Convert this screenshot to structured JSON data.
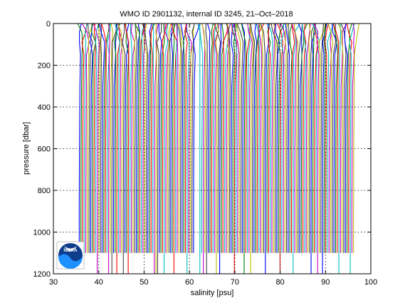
{
  "chart_data": {
    "type": "line",
    "title": "WMO ID 2901132, internal ID 3245, 21–Oct–2018",
    "xlabel": "salinity [psu]",
    "ylabel": "pressure [dbar]",
    "xlim": [
      30,
      100
    ],
    "ylim": [
      0,
      1200
    ],
    "y_reversed": true,
    "x_ticks": [
      "30",
      "40",
      "50",
      "60",
      "70",
      "80",
      "90",
      "100"
    ],
    "y_ticks": [
      "0",
      "200",
      "400",
      "600",
      "800",
      "1000",
      "1200"
    ],
    "grid": true,
    "series_colors": [
      "#0000ff",
      "#008000",
      "#ff0000",
      "#00bfbf",
      "#bf00bf",
      "#bfbf00",
      "#404040"
    ],
    "profiles": {
      "note_offsets": "Profiles are drawn as near-vertical salinity traces offset across the axis",
      "left_cluster": {
        "start": 36.0,
        "end": 61.5,
        "step": 0.36
      },
      "right_cluster": {
        "start": 63.0,
        "end": 96.5,
        "step": 0.36
      },
      "deep_pressure": 1100,
      "surface_spread": 1.2
    },
    "gap_line_x": 62.3
  },
  "logo": {
    "name": "NOAA"
  }
}
